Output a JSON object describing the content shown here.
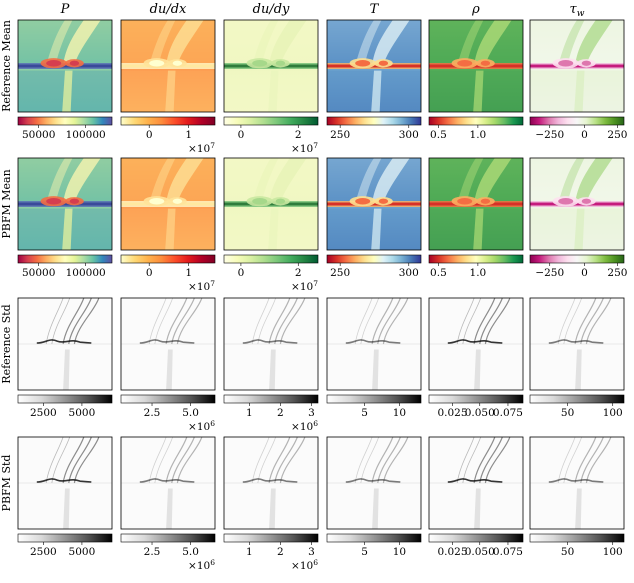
{
  "chart_data": {
    "type": "heatmap",
    "columns": [
      {
        "key": "P",
        "title": "P",
        "colormap": "spectral",
        "mean_ticks": [
          "50000",
          "100000"
        ],
        "mean_tick_pos": [
          0.22,
          0.72
        ],
        "mean_exp": "",
        "std_ticks": [
          "2500",
          "5000"
        ],
        "std_tick_pos": [
          0.27,
          0.68
        ],
        "std_exp": ""
      },
      {
        "key": "dudx",
        "title": "du/dx",
        "colormap": "ylorrd",
        "mean_ticks": [
          "0",
          "1"
        ],
        "mean_tick_pos": [
          0.3,
          0.72
        ],
        "mean_exp": "×10^7",
        "std_ticks": [
          "2.5",
          "5.0"
        ],
        "std_tick_pos": [
          0.33,
          0.74
        ],
        "std_exp": "×10^6"
      },
      {
        "key": "dudy",
        "title": "du/dy",
        "colormap": "ylgn",
        "mean_ticks": [
          "0",
          "2"
        ],
        "mean_tick_pos": [
          0.18,
          0.79
        ],
        "mean_exp": "×10^7",
        "std_ticks": [
          "1",
          "2",
          "3"
        ],
        "std_tick_pos": [
          0.27,
          0.6,
          0.93
        ],
        "std_exp": "×10^6"
      },
      {
        "key": "T",
        "title": "T",
        "colormap": "rdylbu",
        "mean_ticks": [
          "250",
          "300"
        ],
        "mean_tick_pos": [
          0.14,
          0.87
        ],
        "mean_exp": "",
        "std_ticks": [
          "5",
          "10"
        ],
        "std_tick_pos": [
          0.4,
          0.77
        ],
        "std_exp": ""
      },
      {
        "key": "rho",
        "title": "ρ",
        "colormap": "rdylgn",
        "mean_ticks": [
          "0.5",
          "1.0"
        ],
        "mean_tick_pos": [
          0.1,
          0.52
        ],
        "mean_exp": "",
        "std_ticks": [
          "0.025",
          "0.050",
          "0.075"
        ],
        "std_tick_pos": [
          0.25,
          0.54,
          0.84
        ],
        "std_exp": ""
      },
      {
        "key": "tauw",
        "title": "τw",
        "colormap": "piyg",
        "mean_ticks": [
          "−250",
          "0",
          "250"
        ],
        "mean_tick_pos": [
          0.21,
          0.58,
          0.93
        ],
        "mean_exp": "",
        "std_ticks": [
          "50",
          "100"
        ],
        "std_tick_pos": [
          0.4,
          0.88
        ],
        "std_exp": ""
      }
    ],
    "rows": [
      {
        "label": "Reference Mean",
        "kind": "mean"
      },
      {
        "label": "PBFM Mean",
        "kind": "mean"
      },
      {
        "label": "Reference Std",
        "kind": "std"
      },
      {
        "label": "PBFM Std",
        "kind": "std"
      }
    ]
  }
}
